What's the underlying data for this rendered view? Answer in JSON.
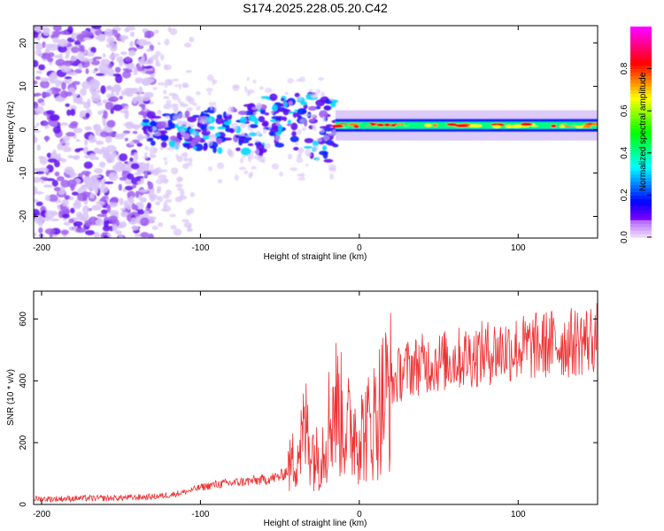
{
  "title": "S174.2025.228.05.20.C42",
  "colors": {
    "snr_line": "#ee3333",
    "spectrum_noise": "#7a1ff0",
    "colormap": [
      "#d8c4f8",
      "#a060f0",
      "#6010f0",
      "#1020ff",
      "#00d8ff",
      "#00ff80",
      "#ffff00",
      "#ff8000",
      "#ff0000",
      "#ff0080"
    ]
  },
  "chart_data": [
    {
      "type": "heatmap",
      "name": "spectrogram",
      "title": "",
      "xlabel": "Height of straight line (km)",
      "ylabel": "Frequency (Hz)",
      "xlim": [
        -205,
        150
      ],
      "ylim": [
        -25,
        24
      ],
      "xticks": [
        -200,
        -100,
        0,
        100
      ],
      "yticks": [
        -20,
        -10,
        0,
        10,
        20
      ],
      "colorbar": {
        "label": "Normalized spectral amplitude",
        "range": [
          0,
          1
        ],
        "ticks": [
          0.0,
          0.2,
          0.4,
          0.6,
          0.8
        ]
      },
      "features": [
        {
          "region": "noise",
          "x_range": [
            -205,
            -130
          ],
          "freq_range": [
            -25,
            24
          ],
          "amplitude": 0.1
        },
        {
          "region": "onset",
          "x_range": [
            -135,
            -15
          ],
          "freq_center": 0,
          "freq_spread": 6,
          "amplitude": 0.35
        },
        {
          "region": "band",
          "x_range": [
            -15,
            150
          ],
          "freq_center": 1,
          "freq_spread": 1.5,
          "amplitude": 0.85
        }
      ]
    },
    {
      "type": "line",
      "name": "snr",
      "title": "",
      "xlabel": "Height of straight line (km)",
      "ylabel": "SNR (10 * v/v)",
      "xlim": [
        -205,
        150
      ],
      "ylim": [
        0,
        690
      ],
      "xticks": [
        -200,
        -100,
        0,
        100
      ],
      "yticks": [
        0,
        200,
        400,
        600
      ],
      "series": [
        {
          "name": "SNR",
          "x": [
            -205,
            -190,
            -175,
            -160,
            -145,
            -130,
            -120,
            -110,
            -100,
            -90,
            -80,
            -70,
            -60,
            -50,
            -45,
            -40,
            -36,
            -33,
            -30,
            -27,
            -24,
            -20,
            -16,
            -13,
            -10,
            -6,
            -2,
            2,
            6,
            10,
            15,
            20,
            25,
            30,
            40,
            50,
            60,
            70,
            80,
            90,
            100,
            110,
            120,
            130,
            140,
            150
          ],
          "y": [
            18,
            18,
            20,
            20,
            22,
            25,
            30,
            40,
            55,
            65,
            70,
            75,
            80,
            90,
            110,
            160,
            210,
            250,
            190,
            150,
            170,
            250,
            330,
            310,
            260,
            240,
            250,
            230,
            250,
            280,
            340,
            380,
            420,
            440,
            455,
            460,
            470,
            480,
            490,
            500,
            505,
            510,
            520,
            520,
            530,
            540
          ]
        }
      ]
    }
  ]
}
